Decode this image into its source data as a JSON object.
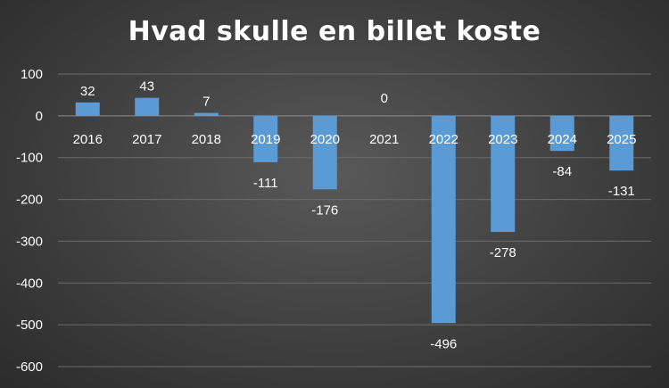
{
  "chart_data": {
    "type": "bar",
    "title": "Hvad skulle en billet koste",
    "categories": [
      "2016",
      "2017",
      "2018",
      "2019",
      "2020",
      "2021",
      "2022",
      "2023",
      "2024",
      "2025"
    ],
    "values": [
      32,
      43,
      7,
      -111,
      -176,
      0,
      -496,
      -278,
      -84,
      -131
    ],
    "data_labels": [
      "32",
      "43",
      "7",
      "-111",
      "-176",
      "0",
      "-496",
      "-278",
      "-84",
      "-131"
    ],
    "ylim": [
      -600,
      100
    ],
    "yticks": [
      100,
      0,
      -100,
      -200,
      -300,
      -400,
      -500,
      -600
    ],
    "ytick_labels": [
      "100",
      "0",
      "-100",
      "-200",
      "-300",
      "-400",
      "-500",
      "-600"
    ],
    "xlabel": "",
    "ylabel": "",
    "grid": true,
    "legend": "none",
    "bar_color": "#5b9bd5"
  }
}
